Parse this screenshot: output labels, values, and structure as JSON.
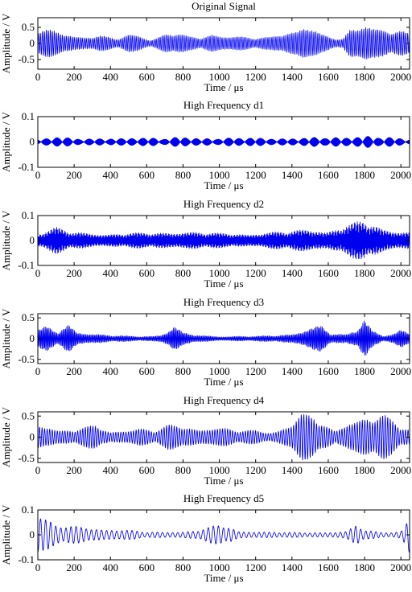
{
  "figure": {
    "colors": {
      "signal": "#0000ee",
      "axes": "#000000",
      "background": "#ffffff"
    },
    "x_tick_labels": [
      "0",
      "200",
      "400",
      "600",
      "800",
      "1000",
      "1200",
      "1400",
      "1600",
      "1800",
      "2000"
    ]
  },
  "chart_data": [
    {
      "type": "line",
      "title": "Original Signal",
      "xlabel": "Time / μs",
      "ylabel": "Amplitude / V",
      "xlim": [
        0,
        2048
      ],
      "ylim": [
        -0.8,
        0.8
      ],
      "yticks": [
        -0.5,
        0,
        0.5
      ],
      "ytick_labels": [
        "-0.5",
        "0",
        "0.5"
      ],
      "series": [
        {
          "carrier_period_us": 11,
          "envelope": [
            [
              0,
              0.45
            ],
            [
              60,
              0.45
            ],
            [
              130,
              0.38
            ],
            [
              200,
              0.3
            ],
            [
              260,
              0.22
            ],
            [
              340,
              0.26
            ],
            [
              430,
              0.15
            ],
            [
              500,
              0.3
            ],
            [
              560,
              0.28
            ],
            [
              620,
              0.12
            ],
            [
              700,
              0.32
            ],
            [
              760,
              0.35
            ],
            [
              830,
              0.22
            ],
            [
              900,
              0.2
            ],
            [
              960,
              0.32
            ],
            [
              1020,
              0.28
            ],
            [
              1100,
              0.25
            ],
            [
              1180,
              0.18
            ],
            [
              1280,
              0.2
            ],
            [
              1380,
              0.4
            ],
            [
              1460,
              0.62
            ],
            [
              1500,
              0.6
            ],
            [
              1560,
              0.3
            ],
            [
              1620,
              0.18
            ],
            [
              1680,
              0.15
            ],
            [
              1720,
              0.45
            ],
            [
              1760,
              0.5
            ],
            [
              1800,
              0.75
            ],
            [
              1830,
              0.7
            ],
            [
              1880,
              0.55
            ],
            [
              1940,
              0.42
            ],
            [
              2000,
              0.4
            ],
            [
              2048,
              0.3
            ]
          ]
        }
      ]
    },
    {
      "type": "line",
      "title": "High Frequency d1",
      "xlabel": "Time / μs",
      "ylabel": "Amplitude / V",
      "xlim": [
        0,
        2048
      ],
      "ylim": [
        -0.1,
        0.1
      ],
      "yticks": [
        -0.1,
        0,
        0.1
      ],
      "ytick_labels": [
        "-0.1",
        "0",
        "0.1"
      ],
      "series": [
        {
          "carrier_period_us": 3,
          "envelope": [
            [
              0,
              0.012
            ],
            [
              100,
              0.025
            ],
            [
              200,
              0.015
            ],
            [
              300,
              0.012
            ],
            [
              500,
              0.02
            ],
            [
              700,
              0.014
            ],
            [
              800,
              0.022
            ],
            [
              1000,
              0.015
            ],
            [
              1200,
              0.018
            ],
            [
              1400,
              0.015
            ],
            [
              1600,
              0.02
            ],
            [
              1800,
              0.025
            ],
            [
              2000,
              0.015
            ],
            [
              2048,
              0.012
            ]
          ]
        }
      ]
    },
    {
      "type": "line",
      "title": "High Frequency d2",
      "xlabel": "Time / μs",
      "ylabel": "Amplitude / V",
      "xlim": [
        0,
        2048
      ],
      "ylim": [
        -0.1,
        0.1
      ],
      "yticks": [
        -0.1,
        0,
        0.1
      ],
      "ytick_labels": [
        "-0.1",
        "0",
        "0.1"
      ],
      "series": [
        {
          "carrier_period_us": 4,
          "envelope": [
            [
              0,
              0.03
            ],
            [
              100,
              0.055
            ],
            [
              200,
              0.035
            ],
            [
              400,
              0.03
            ],
            [
              600,
              0.032
            ],
            [
              800,
              0.04
            ],
            [
              1000,
              0.03
            ],
            [
              1200,
              0.032
            ],
            [
              1400,
              0.04
            ],
            [
              1500,
              0.05
            ],
            [
              1600,
              0.045
            ],
            [
              1800,
              0.085
            ],
            [
              1900,
              0.05
            ],
            [
              2048,
              0.04
            ]
          ]
        }
      ]
    },
    {
      "type": "line",
      "title": "High Frequency d3",
      "xlabel": "Time / μs",
      "ylabel": "Amplitude / V",
      "xlim": [
        0,
        2048
      ],
      "ylim": [
        -0.6,
        0.6
      ],
      "yticks": [
        -0.5,
        0,
        0.5
      ],
      "ytick_labels": [
        "-0.5",
        "0",
        "0.5"
      ],
      "series": [
        {
          "carrier_period_us": 7,
          "envelope": [
            [
              0,
              0.22
            ],
            [
              50,
              0.3
            ],
            [
              110,
              0.18
            ],
            [
              170,
              0.42
            ],
            [
              220,
              0.2
            ],
            [
              300,
              0.12
            ],
            [
              420,
              0.08
            ],
            [
              560,
              0.06
            ],
            [
              680,
              0.1
            ],
            [
              750,
              0.32
            ],
            [
              800,
              0.15
            ],
            [
              900,
              0.08
            ],
            [
              1000,
              0.06
            ],
            [
              1100,
              0.07
            ],
            [
              1200,
              0.06
            ],
            [
              1300,
              0.08
            ],
            [
              1400,
              0.12
            ],
            [
              1500,
              0.3
            ],
            [
              1560,
              0.35
            ],
            [
              1620,
              0.12
            ],
            [
              1700,
              0.1
            ],
            [
              1760,
              0.25
            ],
            [
              1800,
              0.58
            ],
            [
              1840,
              0.3
            ],
            [
              1900,
              0.08
            ],
            [
              1960,
              0.12
            ],
            [
              2000,
              0.22
            ],
            [
              2048,
              0.15
            ]
          ]
        }
      ]
    },
    {
      "type": "line",
      "title": "High Frequency d4",
      "xlabel": "Time / μs",
      "ylabel": "Amplitude / V",
      "xlim": [
        0,
        2048
      ],
      "ylim": [
        -0.6,
        0.6
      ],
      "yticks": [
        -0.5,
        0,
        0.5
      ],
      "ytick_labels": [
        "-0.5",
        "0",
        "0.5"
      ],
      "series": [
        {
          "carrier_period_us": 14,
          "envelope": [
            [
              0,
              0.3
            ],
            [
              60,
              0.3
            ],
            [
              120,
              0.2
            ],
            [
              200,
              0.18
            ],
            [
              320,
              0.3
            ],
            [
              400,
              0.12
            ],
            [
              500,
              0.2
            ],
            [
              560,
              0.25
            ],
            [
              640,
              0.15
            ],
            [
              720,
              0.3
            ],
            [
              800,
              0.28
            ],
            [
              880,
              0.22
            ],
            [
              960,
              0.25
            ],
            [
              1040,
              0.22
            ],
            [
              1120,
              0.15
            ],
            [
              1200,
              0.18
            ],
            [
              1280,
              0.12
            ],
            [
              1380,
              0.3
            ],
            [
              1450,
              0.58
            ],
            [
              1520,
              0.5
            ],
            [
              1580,
              0.3
            ],
            [
              1640,
              0.15
            ],
            [
              1720,
              0.45
            ],
            [
              1800,
              0.52
            ],
            [
              1860,
              0.5
            ],
            [
              1900,
              0.55
            ],
            [
              1960,
              0.4
            ],
            [
              2000,
              0.25
            ],
            [
              2048,
              0.2
            ]
          ]
        }
      ]
    },
    {
      "type": "line",
      "title": "High Frequency d5",
      "xlabel": "Time / μs",
      "ylabel": "Amplitude / V",
      "xlim": [
        0,
        2048
      ],
      "ylim": [
        -0.1,
        0.1
      ],
      "yticks": [
        -0.1,
        0,
        0.1
      ],
      "ytick_labels": [
        "-0.1",
        "0",
        "0.1"
      ],
      "series": [
        {
          "carrier_period_us": 28,
          "envelope": [
            [
              0,
              0.1
            ],
            [
              30,
              0.08
            ],
            [
              100,
              0.04
            ],
            [
              200,
              0.035
            ],
            [
              300,
              0.03
            ],
            [
              400,
              0.025
            ],
            [
              500,
              0.02
            ],
            [
              600,
              0.012
            ],
            [
              700,
              0.012
            ],
            [
              800,
              0.015
            ],
            [
              880,
              0.02
            ],
            [
              960,
              0.035
            ],
            [
              1000,
              0.04
            ],
            [
              1060,
              0.035
            ],
            [
              1100,
              0.015
            ],
            [
              1200,
              0.015
            ],
            [
              1300,
              0.012
            ],
            [
              1400,
              0.01
            ],
            [
              1500,
              0.01
            ],
            [
              1600,
              0.012
            ],
            [
              1700,
              0.015
            ],
            [
              1760,
              0.045
            ],
            [
              1800,
              0.02
            ],
            [
              1900,
              0.01
            ],
            [
              1960,
              0.012
            ],
            [
              2000,
              0.02
            ],
            [
              2030,
              0.06
            ],
            [
              2048,
              0.1
            ]
          ]
        }
      ]
    }
  ]
}
